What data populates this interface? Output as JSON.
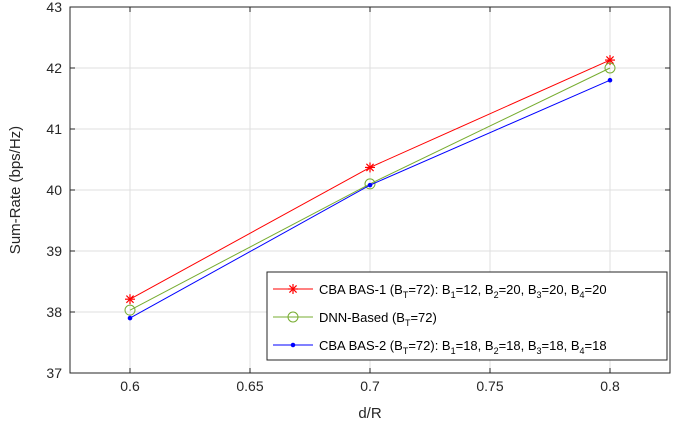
{
  "chart_data": {
    "type": "line",
    "xlabel": "d/R",
    "ylabel": "Sum-Rate (bps/Hz)",
    "xlim": [
      0.575,
      0.825
    ],
    "ylim": [
      37,
      43
    ],
    "xticks": [
      0.6,
      0.65,
      0.7,
      0.75,
      0.8
    ],
    "xtick_labels": [
      "0.6",
      "0.65",
      "0.7",
      "0.75",
      "0.8"
    ],
    "yticks": [
      37,
      38,
      39,
      40,
      41,
      42,
      43
    ],
    "ytick_labels": [
      "37",
      "38",
      "39",
      "40",
      "41",
      "42",
      "43"
    ],
    "grid": true,
    "legend_position": "bottom-right",
    "x": [
      0.6,
      0.7,
      0.8
    ],
    "series": [
      {
        "name": "CBA BAS-1 (B_T=72): B_1=12, B_2=20, B_3=20, B_4=20",
        "values": [
          38.21,
          40.37,
          42.13
        ],
        "color": "#ff0000",
        "marker": "asterisk",
        "legend_parts": [
          [
            "CBA BAS-1 (B",
            ""
          ],
          [
            "T",
            "sub"
          ],
          [
            "=72): B",
            ""
          ],
          [
            "1",
            "sub"
          ],
          [
            "=12, B",
            ""
          ],
          [
            "2",
            "sub"
          ],
          [
            "=20, B",
            ""
          ],
          [
            "3",
            "sub"
          ],
          [
            "=20, B",
            ""
          ],
          [
            "4",
            "sub"
          ],
          [
            "=20",
            ""
          ]
        ]
      },
      {
        "name": "DNN-Based (B_T=72)",
        "values": [
          38.03,
          40.1,
          42.0
        ],
        "color": "#77ac30",
        "marker": "circle",
        "legend_parts": [
          [
            "DNN-Based (B",
            ""
          ],
          [
            "T",
            "sub"
          ],
          [
            "=72)",
            ""
          ]
        ]
      },
      {
        "name": "CBA BAS-2 (B_T=72): B_1=18, B_2=18, B_3=18, B_4=18",
        "values": [
          37.9,
          40.08,
          41.8
        ],
        "color": "#0000ff",
        "marker": "dot",
        "legend_parts": [
          [
            "CBA BAS-2 (B",
            ""
          ],
          [
            "T",
            "sub"
          ],
          [
            "=72): B",
            ""
          ],
          [
            "1",
            "sub"
          ],
          [
            "=18, B",
            ""
          ],
          [
            "2",
            "sub"
          ],
          [
            "=18, B",
            ""
          ],
          [
            "3",
            "sub"
          ],
          [
            "=18, B",
            ""
          ],
          [
            "4",
            "sub"
          ],
          [
            "=18",
            ""
          ]
        ]
      }
    ]
  }
}
